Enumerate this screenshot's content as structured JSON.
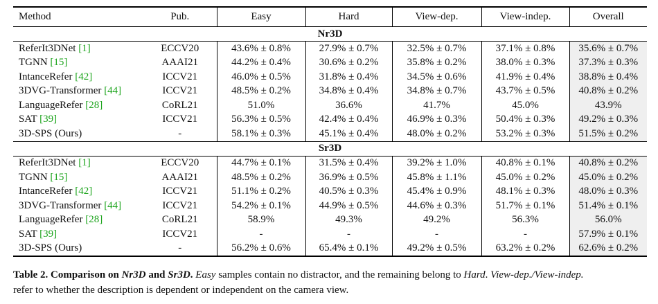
{
  "headers": [
    "Method",
    "Pub.",
    "Easy",
    "Hard",
    "View-dep.",
    "View-indep.",
    "Overall"
  ],
  "sections": [
    {
      "name": "Nr3D",
      "rows": [
        {
          "method": "ReferIt3DNet",
          "cite": "[1]",
          "pub": "ECCV20",
          "vals": [
            "43.6% ± 0.8%",
            "27.9% ± 0.7%",
            "32.5% ± 0.7%",
            "37.1% ± 0.8%",
            "35.6% ± 0.7%"
          ],
          "bold": [
            false,
            false,
            false,
            false,
            false
          ]
        },
        {
          "method": "TGNN",
          "cite": "[15]",
          "pub": "AAAI21",
          "vals": [
            "44.2% ± 0.4%",
            "30.6% ± 0.2%",
            "35.8% ± 0.2%",
            "38.0% ± 0.3%",
            "37.3% ± 0.3%"
          ],
          "bold": [
            false,
            false,
            false,
            false,
            false
          ]
        },
        {
          "method": "IntanceRefer",
          "cite": "[42]",
          "pub": "ICCV21",
          "vals": [
            "46.0% ± 0.5%",
            "31.8% ± 0.4%",
            "34.5% ± 0.6%",
            "41.9% ± 0.4%",
            "38.8% ± 0.4%"
          ],
          "bold": [
            false,
            false,
            false,
            false,
            false
          ]
        },
        {
          "method": "3DVG-Transformer",
          "cite": "[44]",
          "pub": "ICCV21",
          "vals": [
            "48.5% ± 0.2%",
            "34.8% ± 0.4%",
            "34.8% ± 0.7%",
            "43.7% ± 0.5%",
            "40.8% ± 0.2%"
          ],
          "bold": [
            false,
            false,
            false,
            false,
            false
          ]
        },
        {
          "method": "LanguageRefer",
          "cite": "[28]",
          "pub": "CoRL21",
          "vals": [
            "51.0%",
            "36.6%",
            "41.7%",
            "45.0%",
            "43.9%"
          ],
          "bold": [
            false,
            false,
            false,
            false,
            false
          ]
        },
        {
          "method": "SAT",
          "cite": "[39]",
          "pub": "ICCV21",
          "vals": [
            "56.3% ± 0.5%",
            "42.4% ± 0.4%",
            "46.9% ± 0.3%",
            "50.4% ± 0.3%",
            "49.2% ± 0.3%"
          ],
          "bold": [
            false,
            false,
            false,
            false,
            false
          ]
        },
        {
          "method": "3D-SPS (Ours)",
          "cite": "",
          "pub": "-",
          "vals": [
            "58.1% ± 0.3%",
            "45.1% ± 0.4%",
            "48.0% ± 0.2%",
            "53.2% ± 0.3%",
            "51.5% ± 0.2%"
          ],
          "bold": [
            true,
            true,
            true,
            true,
            true
          ],
          "method_bold": true
        }
      ]
    },
    {
      "name": "Sr3D",
      "rows": [
        {
          "method": "ReferIt3DNet",
          "cite": "[1]",
          "pub": "ECCV20",
          "vals": [
            "44.7% ± 0.1%",
            "31.5% ± 0.4%",
            "39.2% ± 1.0%",
            "40.8% ± 0.1%",
            "40.8% ± 0.2%"
          ],
          "bold": [
            false,
            false,
            false,
            false,
            false
          ]
        },
        {
          "method": "TGNN",
          "cite": "[15]",
          "pub": "AAAI21",
          "vals": [
            "48.5% ± 0.2%",
            "36.9% ± 0.5%",
            "45.8% ± 1.1%",
            "45.0% ± 0.2%",
            "45.0% ± 0.2%"
          ],
          "bold": [
            false,
            false,
            false,
            false,
            false
          ]
        },
        {
          "method": "IntanceRefer",
          "cite": "[42]",
          "pub": "ICCV21",
          "vals": [
            "51.1% ± 0.2%",
            "40.5% ± 0.3%",
            "45.4% ± 0.9%",
            "48.1% ± 0.3%",
            "48.0% ± 0.3%"
          ],
          "bold": [
            false,
            false,
            false,
            false,
            false
          ]
        },
        {
          "method": "3DVG-Transformer",
          "cite": "[44]",
          "pub": "ICCV21",
          "vals": [
            "54.2% ± 0.1%",
            "44.9% ± 0.5%",
            "44.6% ± 0.3%",
            "51.7% ± 0.1%",
            "51.4% ± 0.1%"
          ],
          "bold": [
            false,
            false,
            false,
            false,
            false
          ]
        },
        {
          "method": "LanguageRefer",
          "cite": "[28]",
          "pub": "CoRL21",
          "vals": [
            "58.9%",
            "49.3%",
            "49.2%",
            "56.3%",
            "56.0%"
          ],
          "bold": [
            true,
            false,
            false,
            false,
            false
          ]
        },
        {
          "method": "SAT",
          "cite": "[39]",
          "pub": "ICCV21",
          "vals": [
            "-",
            "-",
            "-",
            "-",
            "57.9% ± 0.1%"
          ],
          "bold": [
            false,
            false,
            false,
            false,
            false
          ]
        },
        {
          "method": "3D-SPS (Ours)",
          "cite": "",
          "pub": "-",
          "vals": [
            "56.2% ± 0.6%",
            "65.4% ± 0.1%",
            "49.2% ± 0.5%",
            "63.2% ± 0.2%",
            "62.6% ± 0.2%"
          ],
          "bold": [
            false,
            true,
            true,
            true,
            true
          ],
          "method_bold": true
        }
      ]
    }
  ],
  "caption": {
    "label": "Table 2.",
    "title_a": "Comparison on ",
    "nr3d": "Nr3D",
    "and": " and ",
    "sr3d": "Sr3D",
    "period": ".",
    "easy": "Easy",
    "text1": " samples contain no distractor, and the remaining belong to ",
    "hard": "Hard",
    "text2": ". ",
    "views": "View-dep./View-indep.",
    "line2": "refer to whether the description is dependent or independent on the camera view."
  },
  "colors": {
    "citation": "#1aa31a",
    "overall_shade": "#efefef"
  }
}
